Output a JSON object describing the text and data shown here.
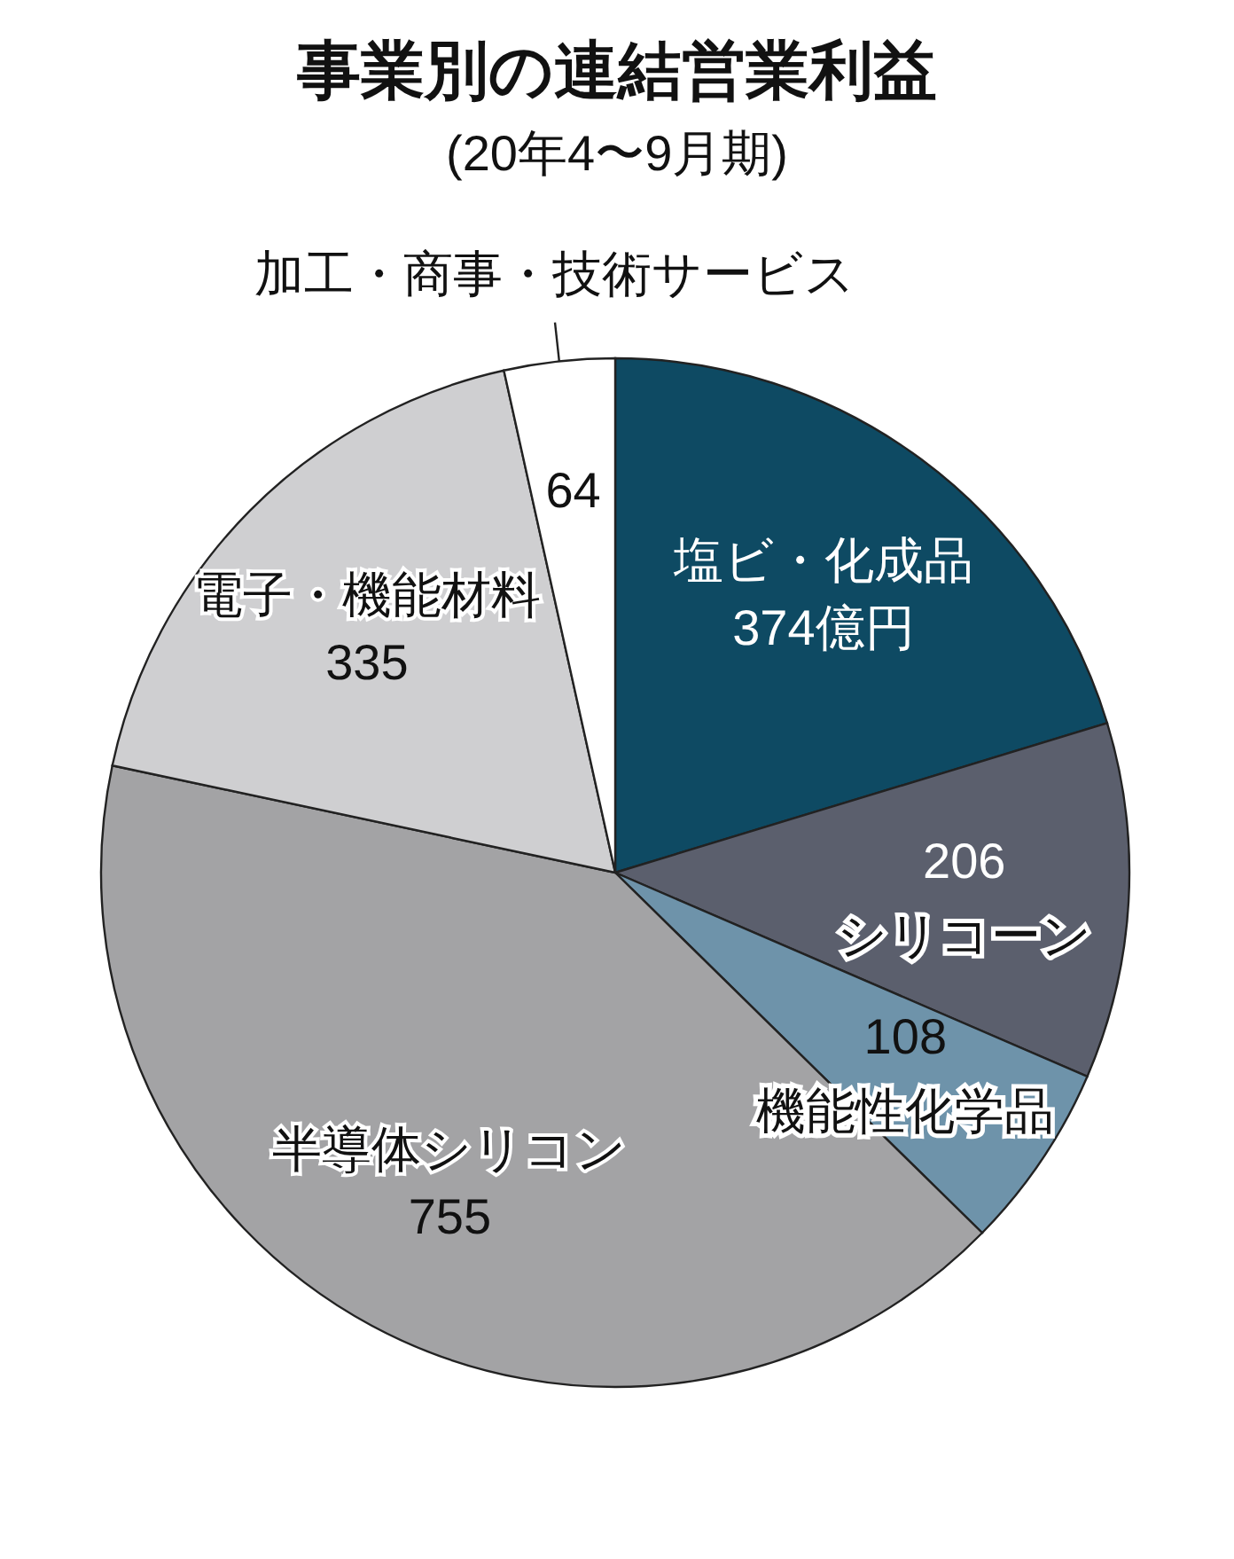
{
  "chart_data": {
    "type": "pie",
    "title": "事業別の連結営業利益",
    "subtitle": "(20年4〜9月期)",
    "categories": [
      "塩ビ・化成品",
      "シリコーン",
      "機能性化学品",
      "半導体シリコン",
      "電子・機能材料",
      "加工・商事・技術サービス"
    ],
    "values": [
      374,
      206,
      108,
      755,
      335,
      64
    ],
    "value_labels": [
      "374億円",
      "206",
      "108",
      "755",
      "335",
      "64"
    ],
    "colors": [
      "#0e4a63",
      "#5b5f6d",
      "#6e93aa",
      "#a3a3a5",
      "#cfcfd1",
      "#ffffff"
    ]
  }
}
